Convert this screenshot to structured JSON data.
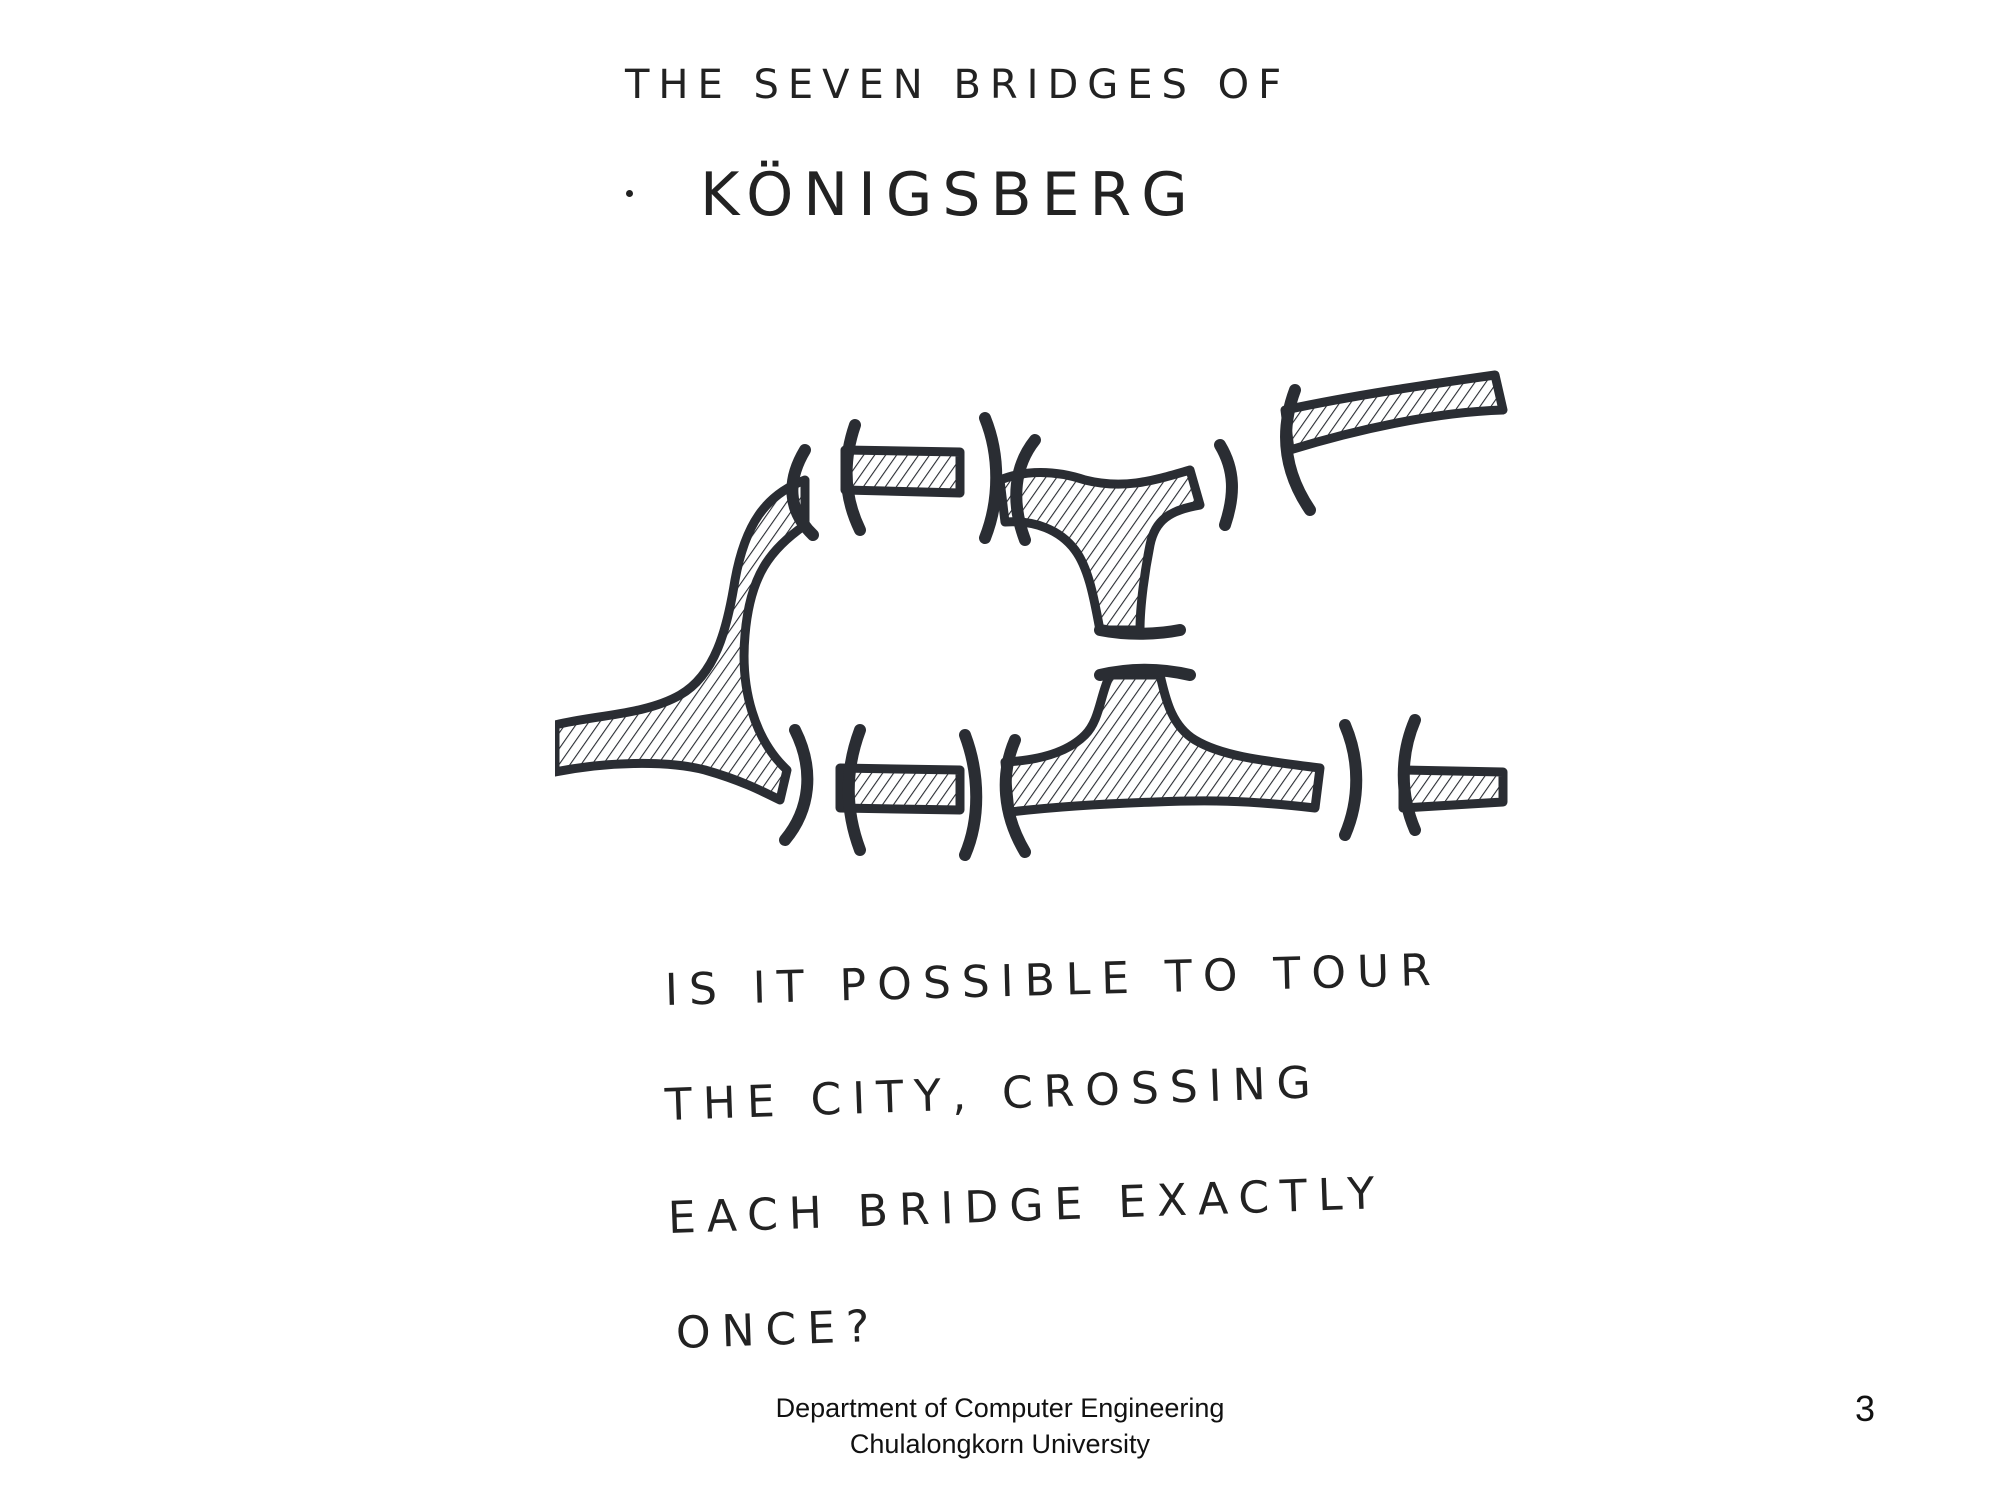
{
  "title": {
    "line1": "THE SEVEN BRIDGES OF",
    "line2": "KÖNIGSBERG"
  },
  "question": {
    "line1": "IS IT POSSIBLE TO TOUR",
    "line2": "THE CITY, CROSSING",
    "line3": "EACH BRIDGE EXACTLY",
    "line4": "ONCE?"
  },
  "footer": {
    "line1": "Department of Computer Engineering",
    "line2": "Chulalongkorn University"
  },
  "page_number": "3",
  "illustration": {
    "subject": "river-with-seven-bridges",
    "bridge_count": 7,
    "ink_color": "#2a2d33",
    "hatch_color": "#2a2d33"
  }
}
